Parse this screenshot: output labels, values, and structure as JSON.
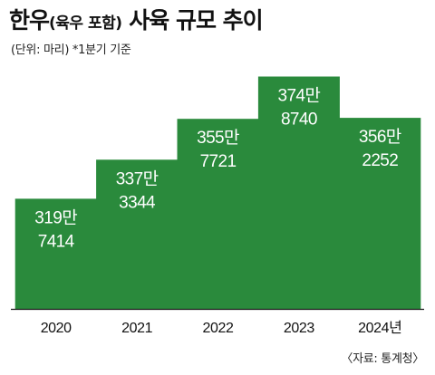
{
  "title_main": "한우",
  "title_paren": "(육우 포함)",
  "title_rest": " 사육 규모 추이",
  "subtitle": "(단위: 마리) *1분기 기준",
  "source": "〈자료: 통계청〉",
  "colors": {
    "bar": "#2a8a3c",
    "baseline": "#1a1a1a",
    "label": "#ffffff"
  },
  "chart_data": {
    "type": "bar",
    "title": "한우(육우 포함) 사육 규모 추이",
    "subtitle": "(단위: 마리) *1분기 기준",
    "categories": [
      "2020",
      "2021",
      "2022",
      "2023",
      "2024년"
    ],
    "values": [
      3197414,
      3373344,
      3557721,
      3748740,
      3562252
    ],
    "value_labels": [
      [
        "319만",
        "7414"
      ],
      [
        "337만",
        "3344"
      ],
      [
        "355만",
        "7721"
      ],
      [
        "374만",
        "8740"
      ],
      [
        "356만",
        "2252"
      ]
    ],
    "unit": "마리",
    "ylim": [
      2700000,
      3800000
    ],
    "grid": false,
    "legend": "none"
  }
}
